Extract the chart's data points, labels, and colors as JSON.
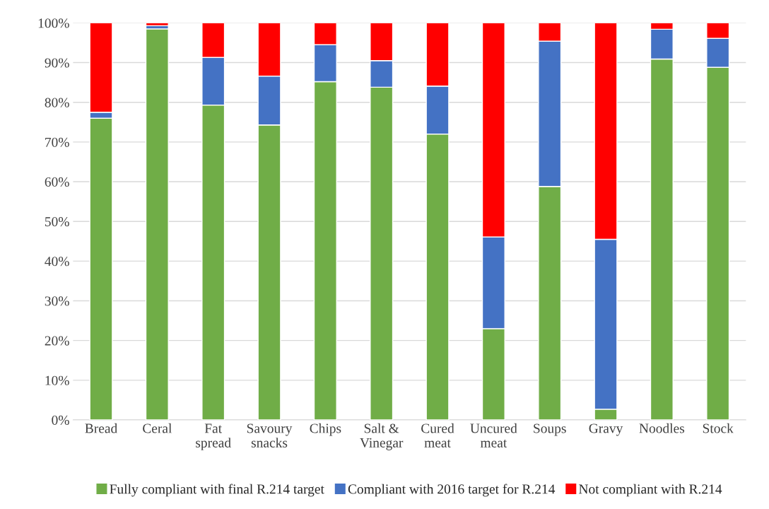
{
  "chart_data": {
    "type": "bar",
    "stacked": true,
    "categories": [
      "Bread",
      "Ceral",
      "Fat\nspread",
      "Savoury\nsnacks",
      "Chips",
      "Salt &\nVinegar",
      "Cured\nmeat",
      "Uncured\nmeat",
      "Soups",
      "Gravy",
      "Noodles",
      "Stock"
    ],
    "series": [
      {
        "name": "Fully compliant with final R.214 target",
        "color": "#70ad47",
        "values": [
          76,
          98.5,
          79.3,
          74.3,
          85.2,
          83.8,
          72,
          23,
          58.8,
          2.7,
          90.9,
          88.8
        ]
      },
      {
        "name": "Compliant with 2016 target for R.214",
        "color": "#4472c4",
        "values": [
          1.5,
          0.8,
          12,
          12.3,
          9.3,
          6.7,
          12.1,
          23.1,
          36.6,
          42.8,
          7.5,
          7.3
        ]
      },
      {
        "name": "Not compliant with R.214",
        "color": "#ff0000",
        "values": [
          22.5,
          0.7,
          8.7,
          13.4,
          5.5,
          9.5,
          15.9,
          53.9,
          4.6,
          54.5,
          1.6,
          3.9
        ]
      }
    ],
    "ylim": [
      0,
      100
    ],
    "yticks": [
      {
        "value": 0,
        "label": "0%"
      },
      {
        "value": 10,
        "label": "10%"
      },
      {
        "value": 20,
        "label": "20%"
      },
      {
        "value": 30,
        "label": "30%"
      },
      {
        "value": 40,
        "label": "40%"
      },
      {
        "value": 50,
        "label": "50%"
      },
      {
        "value": 60,
        "label": "60%"
      },
      {
        "value": 70,
        "label": "70%"
      },
      {
        "value": 80,
        "label": "80%"
      },
      {
        "value": 90,
        "label": "90%"
      },
      {
        "value": 100,
        "label": "100%"
      }
    ],
    "grid": "y",
    "legend": "bottom"
  }
}
